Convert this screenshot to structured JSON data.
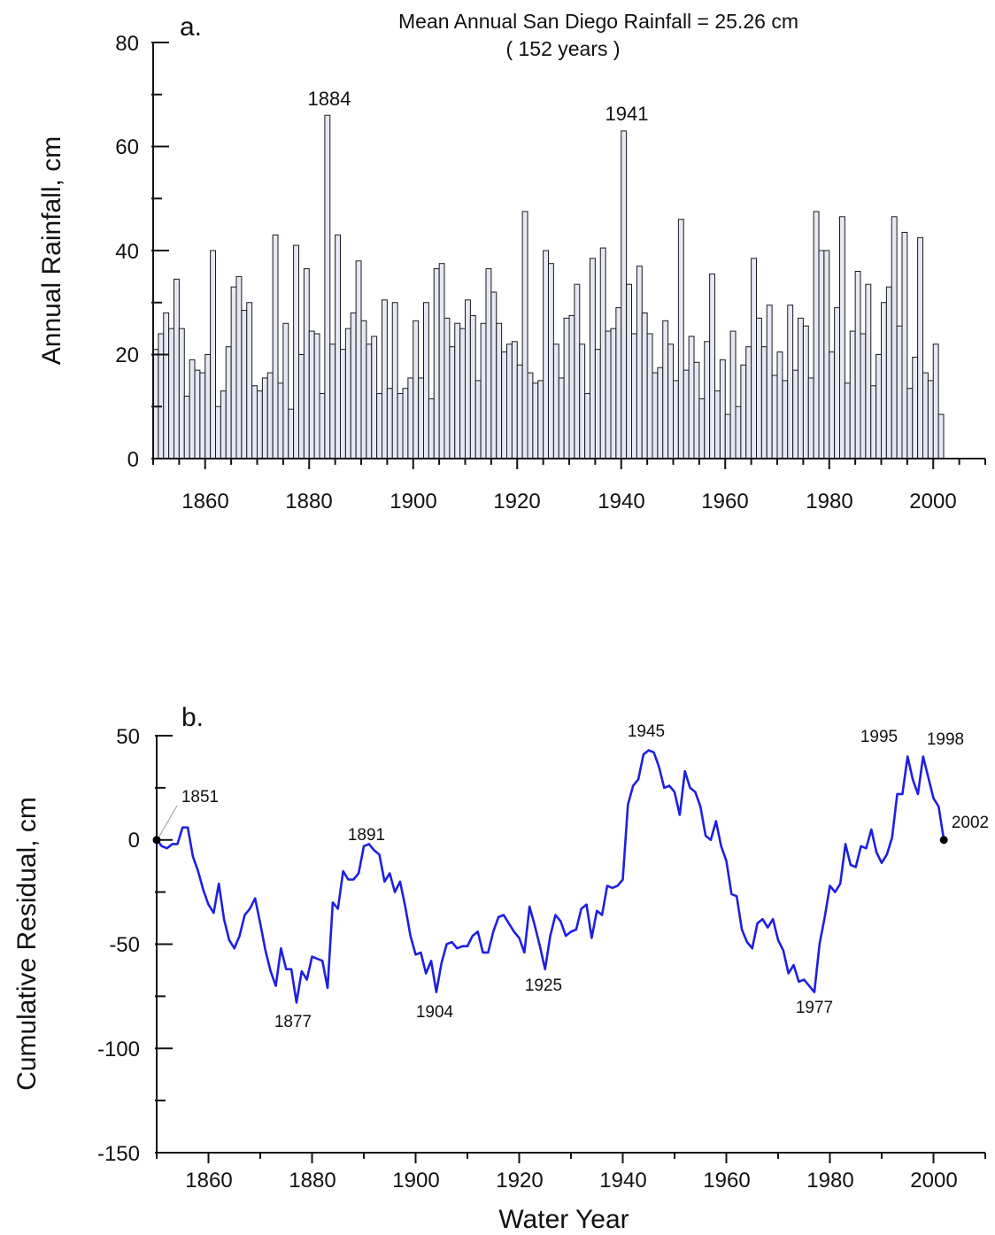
{
  "colors": {
    "bar_fill": "#e6e8f4",
    "bar_stroke": "#1a1a1a",
    "line": "#1f1fe0",
    "axis": "#111111"
  },
  "panel_a": {
    "label": "a.",
    "title_line1": "Mean Annual San Diego Rainfall = 25.26 cm",
    "title_line2": "( 152 years )",
    "ylabel": "Annual Rainfall, cm",
    "ylim": [
      0,
      80
    ],
    "xlim": [
      1850,
      2010
    ],
    "y_ticks": [
      "0",
      "20",
      "40",
      "60",
      "80"
    ],
    "x_ticks": [
      "1860",
      "1880",
      "1900",
      "1920",
      "1940",
      "1960",
      "1980",
      "2000"
    ],
    "annotations": [
      "1884",
      "1941"
    ]
  },
  "panel_b": {
    "label": "b.",
    "xlabel": "Water Year",
    "ylabel": "Cumulative Residual, cm",
    "ylim": [
      -150,
      50
    ],
    "xlim": [
      1850,
      2010
    ],
    "y_ticks": [
      "-150",
      "-100",
      "-50",
      "0",
      "50"
    ],
    "x_ticks": [
      "1860",
      "1880",
      "1900",
      "1920",
      "1940",
      "1960",
      "1980",
      "2000"
    ],
    "annotations": [
      "1851",
      "1877",
      "1891",
      "1904",
      "1925",
      "1945",
      "1977",
      "1995",
      "1998",
      "2002"
    ]
  },
  "chart_data": [
    {
      "type": "bar",
      "title": "Mean Annual San Diego Rainfall = 25.26 cm ( 152 years )",
      "ylabel": "Annual Rainfall, cm",
      "ylim": [
        0,
        80
      ],
      "xlim": [
        1850,
        2010
      ],
      "start_year": 1851,
      "values": [
        21,
        24,
        28,
        25,
        34.5,
        25,
        12,
        19,
        17,
        16.5,
        20,
        40,
        10,
        13,
        21.5,
        33,
        35,
        28.5,
        30,
        14,
        13,
        15.5,
        16.5,
        43,
        14.5,
        26,
        9.5,
        41,
        20,
        36.5,
        24.5,
        24,
        12.5,
        66,
        22,
        43,
        21,
        25,
        28,
        38,
        26.5,
        22,
        23.5,
        12.5,
        30.5,
        13.5,
        30,
        12.5,
        13.5,
        15.5,
        26.5,
        15.5,
        30,
        11.5,
        36.5,
        37.5,
        27,
        21.5,
        26,
        25,
        30.5,
        27.5,
        15,
        26,
        36.5,
        32,
        26,
        20.5,
        22,
        22.5,
        18,
        47.5,
        16.5,
        14.5,
        15,
        40,
        37.5,
        22,
        15.5,
        27,
        27.5,
        33.5,
        22,
        12.5,
        38.5,
        21,
        40.5,
        24.5,
        25,
        29,
        63,
        33.5,
        24,
        37,
        28,
        24,
        16.5,
        17.5,
        26.5,
        22,
        15,
        46,
        17,
        23.5,
        18.5,
        11.5,
        22.5,
        35.5,
        13,
        19,
        8.5,
        24.5,
        10,
        18,
        21.5,
        38.5,
        27,
        21.5,
        29.5,
        16,
        20.5,
        15,
        29.5,
        17,
        27,
        25.5,
        15.5,
        47.5,
        40,
        40,
        20.5,
        29,
        46.5,
        14.5,
        24.5,
        36,
        24,
        33.5,
        14,
        20,
        30,
        33,
        46.5,
        25.5,
        43.5,
        13.5,
        19.5,
        42.5,
        16.5,
        15,
        22,
        8.5
      ],
      "annotations": [
        {
          "year": 1884,
          "value": 66
        },
        {
          "year": 1941,
          "value": 63
        }
      ]
    },
    {
      "type": "line",
      "xlabel": "Water Year",
      "ylabel": "Cumulative Residual, cm",
      "ylim": [
        -150,
        50
      ],
      "xlim": [
        1850,
        2010
      ],
      "x": [
        1850,
        1851,
        1852,
        1853,
        1854,
        1855,
        1856,
        1857,
        1858,
        1859,
        1860,
        1861,
        1862,
        1863,
        1864,
        1865,
        1866,
        1867,
        1868,
        1869,
        1870,
        1871,
        1872,
        1873,
        1874,
        1875,
        1876,
        1877,
        1878,
        1879,
        1880,
        1881,
        1882,
        1883,
        1884,
        1885,
        1886,
        1887,
        1888,
        1889,
        1890,
        1891,
        1892,
        1893,
        1894,
        1895,
        1896,
        1897,
        1898,
        1899,
        1900,
        1901,
        1902,
        1903,
        1904,
        1905,
        1906,
        1907,
        1908,
        1909,
        1910,
        1911,
        1912,
        1913,
        1914,
        1915,
        1916,
        1917,
        1918,
        1919,
        1920,
        1921,
        1922,
        1923,
        1924,
        1925,
        1926,
        1927,
        1928,
        1929,
        1930,
        1931,
        1932,
        1933,
        1934,
        1935,
        1936,
        1937,
        1938,
        1939,
        1940,
        1941,
        1942,
        1943,
        1944,
        1945,
        1946,
        1947,
        1948,
        1949,
        1950,
        1951,
        1952,
        1953,
        1954,
        1955,
        1956,
        1957,
        1958,
        1959,
        1960,
        1961,
        1962,
        1963,
        1964,
        1965,
        1966,
        1967,
        1968,
        1969,
        1970,
        1971,
        1972,
        1973,
        1974,
        1975,
        1976,
        1977,
        1978,
        1979,
        1980,
        1981,
        1982,
        1983,
        1984,
        1985,
        1986,
        1987,
        1988,
        1989,
        1990,
        1991,
        1992,
        1993,
        1994,
        1995,
        1996,
        1997,
        1998,
        1999,
        2000,
        2001,
        2002
      ],
      "y": [
        0,
        -3,
        -4,
        -2,
        -2,
        6,
        6,
        -8,
        -15,
        -24,
        -31,
        -35,
        -21,
        -38,
        -48,
        -52,
        -46,
        -36,
        -33,
        -28,
        -40,
        -53,
        -63,
        -70,
        -52,
        -62,
        -62,
        -78,
        -63,
        -67,
        -56,
        -57,
        -58,
        -71,
        -30,
        -33,
        -15,
        -19,
        -19,
        -16,
        -3,
        -2,
        -5,
        -7,
        -20,
        -16,
        -25,
        -20,
        -32,
        -46,
        -55,
        -54,
        -64,
        -58,
        -73,
        -59,
        -50,
        -49,
        -52,
        -51,
        -51,
        -46,
        -44,
        -54,
        -54,
        -44,
        -37,
        -36,
        -40,
        -44,
        -47,
        -54,
        -32,
        -41,
        -51,
        -62,
        -46,
        -36,
        -39,
        -46,
        -44,
        -43,
        -33,
        -31,
        -47,
        -34,
        -36,
        -22,
        -23,
        -22,
        -19,
        17,
        26,
        29,
        41,
        43,
        42,
        35,
        25,
        26,
        23,
        12,
        33,
        25,
        23,
        16,
        2,
        0,
        9,
        -3,
        -10,
        -26,
        -27,
        -43,
        -49,
        -52,
        -40,
        -38,
        -42,
        -38,
        -48,
        -53,
        -64,
        -60,
        -68,
        -67,
        -70,
        -73,
        -50,
        -37,
        -22,
        -25,
        -21,
        -2,
        -12,
        -13,
        -3,
        -4,
        5,
        -6,
        -11,
        -7,
        1,
        22,
        22,
        40,
        29,
        22,
        40,
        30,
        20,
        16,
        0
      ],
      "annotations": [
        {
          "year": 1851,
          "value": 0
        },
        {
          "year": 1877,
          "value": -78
        },
        {
          "year": 1891,
          "value": -2
        },
        {
          "year": 1904,
          "value": -73
        },
        {
          "year": 1925,
          "value": -62
        },
        {
          "year": 1945,
          "value": 43
        },
        {
          "year": 1977,
          "value": -73
        },
        {
          "year": 1995,
          "value": 40
        },
        {
          "year": 1998,
          "value": 40
        },
        {
          "year": 2002,
          "value": 0
        }
      ]
    }
  ]
}
